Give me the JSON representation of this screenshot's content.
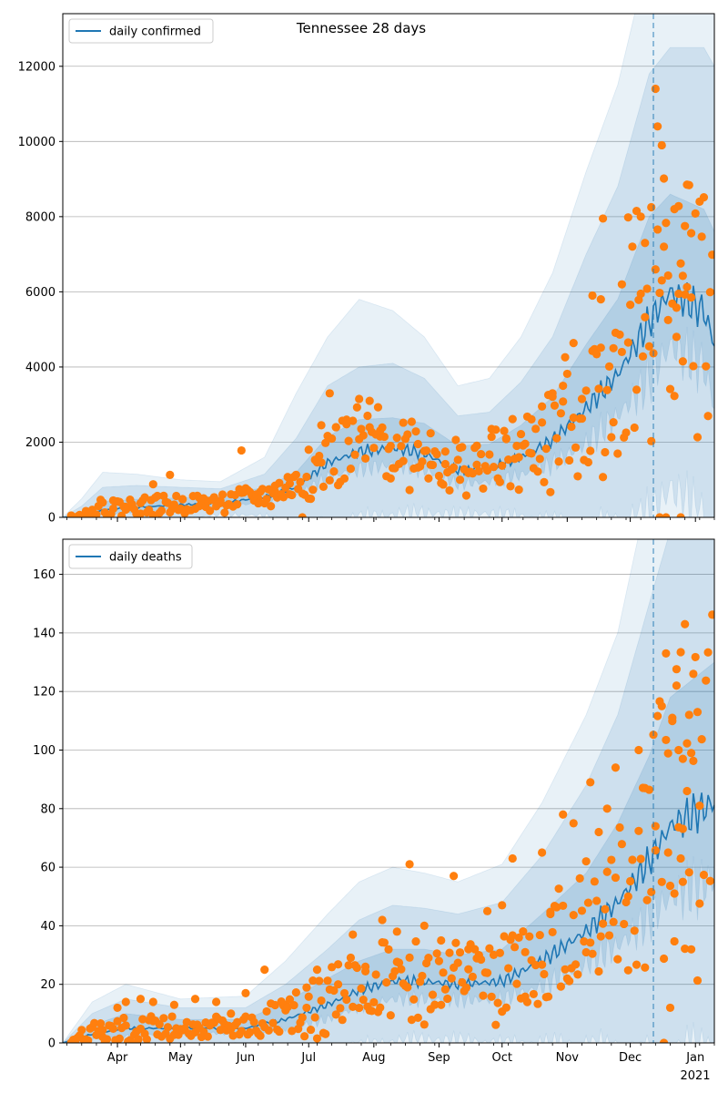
{
  "chart_data": [
    {
      "type": "line",
      "title": "Tennessee 28 days",
      "legend": "upper-left",
      "grid_y": true,
      "ylim": [
        0,
        13400
      ],
      "yticks": [
        0,
        2000,
        4000,
        6000,
        8000,
        10000,
        12000
      ],
      "vline_date": "2020-12-12",
      "series": [
        {
          "name": "daily confirmed",
          "color": "#1f77b4"
        }
      ],
      "observed_color": "#ff7f0e",
      "band_color": "#1f77b4",
      "knots": [
        [
          "2020-03-06",
          0,
          0,
          0,
          0
        ],
        [
          "2020-03-15",
          30,
          120,
          300,
          500
        ],
        [
          "2020-03-25",
          200,
          420,
          800,
          1200
        ],
        [
          "2020-04-10",
          270,
          480,
          850,
          1150
        ],
        [
          "2020-05-01",
          330,
          520,
          800,
          1000
        ],
        [
          "2020-05-20",
          380,
          560,
          760,
          950
        ],
        [
          "2020-06-10",
          540,
          800,
          1150,
          1600
        ],
        [
          "2020-06-25",
          800,
          1200,
          2100,
          3300
        ],
        [
          "2020-07-10",
          1450,
          2150,
          3500,
          4800
        ],
        [
          "2020-07-25",
          1750,
          2600,
          4000,
          5800
        ],
        [
          "2020-08-10",
          1850,
          2650,
          4100,
          5500
        ],
        [
          "2020-08-25",
          1700,
          2500,
          3700,
          4800
        ],
        [
          "2020-09-10",
          1250,
          1900,
          2700,
          3500
        ],
        [
          "2020-09-25",
          1300,
          1950,
          2800,
          3700
        ],
        [
          "2020-10-10",
          1600,
          2450,
          3600,
          4800
        ],
        [
          "2020-10-25",
          2050,
          3200,
          4800,
          6500
        ],
        [
          "2020-11-10",
          2900,
          4600,
          7000,
          9200
        ],
        [
          "2020-11-25",
          3800,
          5800,
          8800,
          11500
        ],
        [
          "2020-12-10",
          5200,
          8000,
          11800,
          15000
        ],
        [
          "2020-12-20",
          6000,
          8600,
          12500,
          16000
        ],
        [
          "2021-01-05",
          5500,
          8200,
          12500,
          16500
        ],
        [
          "2021-01-10",
          4600,
          7600,
          12000,
          16000
        ]
      ],
      "observed_cases": [
        [
          "2020-03-10",
          50
        ],
        [
          "2020-03-20",
          200
        ],
        [
          "2020-03-30",
          450
        ],
        [
          "2020-04-05",
          280
        ],
        [
          "2020-04-12",
          380
        ],
        [
          "2020-04-18",
          880
        ],
        [
          "2020-04-26",
          1130
        ],
        [
          "2020-05-02",
          480
        ],
        [
          "2020-05-10",
          300
        ],
        [
          "2020-05-20",
          380
        ],
        [
          "2020-05-30",
          1780
        ],
        [
          "2020-06-07",
          500
        ],
        [
          "2020-06-15",
          680
        ],
        [
          "2020-06-22",
          900
        ],
        [
          "2020-06-28",
          0
        ],
        [
          "2020-07-01",
          1800
        ],
        [
          "2020-07-07",
          2450
        ],
        [
          "2020-07-11",
          3300
        ],
        [
          "2020-07-14",
          2400
        ],
        [
          "2020-07-19",
          2600
        ],
        [
          "2020-07-25",
          3150
        ],
        [
          "2020-07-30",
          3100
        ],
        [
          "2020-08-04",
          2150
        ],
        [
          "2020-08-09",
          1900
        ],
        [
          "2020-08-15",
          1500
        ],
        [
          "2020-08-22",
          1950
        ],
        [
          "2020-08-28",
          1400
        ],
        [
          "2020-09-04",
          1750
        ],
        [
          "2020-09-11",
          1000
        ],
        [
          "2020-09-19",
          1400
        ],
        [
          "2020-09-26",
          2350
        ],
        [
          "2020-10-03",
          2100
        ],
        [
          "2020-10-09",
          1600
        ],
        [
          "2020-10-15",
          1700
        ],
        [
          "2020-10-20",
          2950
        ],
        [
          "2020-10-25",
          3300
        ],
        [
          "2020-10-30",
          3500
        ],
        [
          "2020-11-04",
          2650
        ],
        [
          "2020-11-08",
          3150
        ],
        [
          "2020-11-13",
          5900
        ],
        [
          "2020-11-17",
          5800
        ],
        [
          "2020-11-18",
          7950
        ],
        [
          "2020-11-23",
          4500
        ],
        [
          "2020-11-27",
          4400
        ],
        [
          "2020-11-30",
          7980
        ],
        [
          "2020-12-04",
          8150
        ],
        [
          "2020-12-06",
          5950
        ],
        [
          "2020-12-08",
          7300
        ],
        [
          "2020-12-11",
          8250
        ],
        [
          "2020-12-13",
          11400
        ],
        [
          "2020-12-14",
          10400
        ],
        [
          "2020-12-16",
          9900
        ],
        [
          "2020-12-17",
          7200
        ],
        [
          "2020-12-22",
          8200
        ],
        [
          "2020-12-24",
          5950
        ],
        [
          "2020-12-28",
          8850
        ],
        [
          "2020-12-27",
          7750
        ],
        [
          "2020-12-30",
          5850
        ],
        [
          "2020-12-19",
          5250
        ],
        [
          "2020-12-23",
          4800
        ],
        [
          "2020-12-26",
          4150
        ],
        [
          "2020-12-15",
          0
        ],
        [
          "2020-12-18",
          0
        ],
        [
          "2020-12-25",
          0
        ]
      ]
    },
    {
      "type": "line",
      "legend": "upper-left",
      "grid_y": true,
      "ylim": [
        0,
        172
      ],
      "yticks": [
        0,
        20,
        40,
        60,
        80,
        100,
        120,
        140,
        160
      ],
      "vline_date": "2020-12-12",
      "series": [
        {
          "name": "daily deaths",
          "color": "#1f77b4"
        }
      ],
      "observed_color": "#ff7f0e",
      "band_color": "#1f77b4",
      "xticks": [
        "Apr",
        "May",
        "Jun",
        "Jul",
        "Aug",
        "Sep",
        "Oct",
        "Nov",
        "Dec",
        "Jan"
      ],
      "xyear": "2021",
      "knots": [
        [
          "2020-03-06",
          0,
          0,
          0,
          0
        ],
        [
          "2020-03-20",
          3,
          6,
          10,
          14
        ],
        [
          "2020-04-05",
          5,
          10,
          15,
          20
        ],
        [
          "2020-05-01",
          5,
          8,
          12,
          15
        ],
        [
          "2020-06-01",
          5,
          8,
          12,
          16
        ],
        [
          "2020-06-20",
          8,
          14,
          20,
          28
        ],
        [
          "2020-07-10",
          13,
          22,
          32,
          44
        ],
        [
          "2020-07-25",
          18,
          28,
          42,
          55
        ],
        [
          "2020-08-10",
          21,
          32,
          47,
          60
        ],
        [
          "2020-08-25",
          21,
          32,
          46,
          58
        ],
        [
          "2020-09-10",
          20,
          30,
          44,
          55
        ],
        [
          "2020-10-01",
          21,
          32,
          48,
          61
        ],
        [
          "2020-10-20",
          28,
          44,
          64,
          82
        ],
        [
          "2020-11-10",
          38,
          58,
          88,
          112
        ],
        [
          "2020-11-25",
          48,
          75,
          112,
          140
        ],
        [
          "2020-12-10",
          62,
          98,
          150,
          190
        ],
        [
          "2020-12-20",
          74,
          118,
          175,
          220
        ],
        [
          "2021-01-10",
          82,
          130,
          190,
          240
        ]
      ],
      "observed_deaths": [
        [
          "2020-03-25",
          2
        ],
        [
          "2020-04-01",
          12
        ],
        [
          "2020-04-05",
          14
        ],
        [
          "2020-04-12",
          15
        ],
        [
          "2020-04-18",
          14
        ],
        [
          "2020-04-28",
          13
        ],
        [
          "2020-05-08",
          15
        ],
        [
          "2020-05-18",
          14
        ],
        [
          "2020-05-25",
          10
        ],
        [
          "2020-06-01",
          17
        ],
        [
          "2020-06-10",
          25
        ],
        [
          "2020-06-20",
          13
        ],
        [
          "2020-06-30",
          12
        ],
        [
          "2020-07-05",
          25
        ],
        [
          "2020-07-15",
          20
        ],
        [
          "2020-07-22",
          37
        ],
        [
          "2020-07-28",
          26
        ],
        [
          "2020-08-05",
          42
        ],
        [
          "2020-08-12",
          38
        ],
        [
          "2020-08-18",
          61
        ],
        [
          "2020-08-25",
          40
        ],
        [
          "2020-09-02",
          35
        ],
        [
          "2020-09-08",
          57
        ],
        [
          "2020-09-15",
          32
        ],
        [
          "2020-09-24",
          45
        ],
        [
          "2020-10-01",
          47
        ],
        [
          "2020-10-06",
          63
        ],
        [
          "2020-10-12",
          31
        ],
        [
          "2020-10-20",
          65
        ],
        [
          "2020-10-24",
          44
        ],
        [
          "2020-10-30",
          78
        ],
        [
          "2020-11-04",
          75
        ],
        [
          "2020-11-10",
          62
        ],
        [
          "2020-11-12",
          89
        ],
        [
          "2020-11-16",
          72
        ],
        [
          "2020-11-20",
          80
        ],
        [
          "2020-11-24",
          94
        ],
        [
          "2020-11-30",
          50
        ],
        [
          "2020-12-05",
          100
        ],
        [
          "2020-12-08",
          87
        ],
        [
          "2020-12-13",
          74
        ],
        [
          "2020-12-16",
          115
        ],
        [
          "2020-12-18",
          133
        ],
        [
          "2020-12-21",
          111
        ],
        [
          "2020-12-23",
          122
        ],
        [
          "2020-12-24",
          100
        ],
        [
          "2020-12-27",
          143
        ],
        [
          "2020-12-29",
          112
        ],
        [
          "2020-12-31",
          126
        ],
        [
          "2021-01-02",
          113
        ],
        [
          "2020-12-30",
          99
        ],
        [
          "2020-12-26",
          97
        ],
        [
          "2020-12-28",
          86
        ],
        [
          "2021-01-03",
          81
        ],
        [
          "2020-12-19",
          65
        ],
        [
          "2020-12-25",
          63
        ],
        [
          "2020-12-22",
          51
        ],
        [
          "2020-12-20",
          12
        ],
        [
          "2020-12-17",
          0
        ],
        [
          "2020-12-26",
          55
        ]
      ]
    }
  ]
}
